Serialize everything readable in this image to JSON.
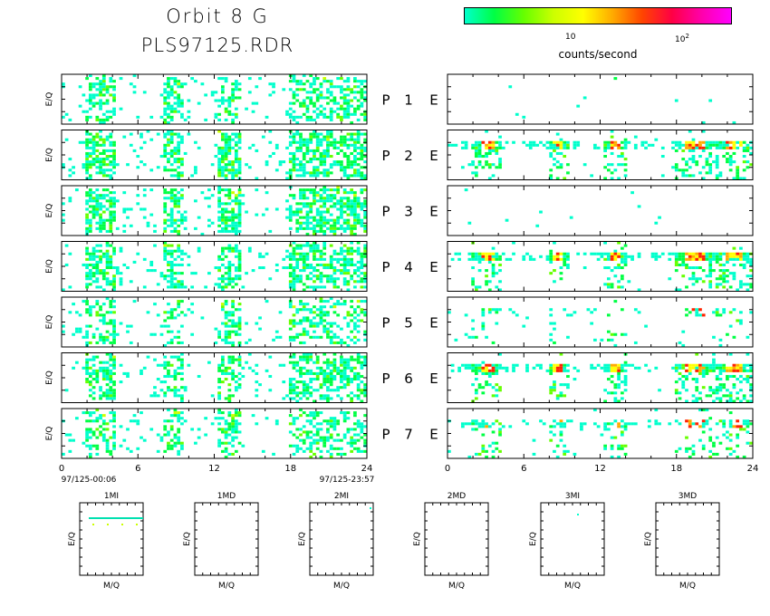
{
  "title": {
    "line1": "Orbit  8  G",
    "line2": "PLS97125.RDR"
  },
  "colorbar": {
    "label": "counts/second",
    "tick_10": "10",
    "tick_100_base": "10",
    "tick_100_exp": "2",
    "stops": [
      "#00ffcc",
      "#00ff44",
      "#66ff00",
      "#ccff00",
      "#ffff00",
      "#ffaa00",
      "#ff4400",
      "#ff0044",
      "#ff00aa",
      "#ff00ff"
    ]
  },
  "panels": {
    "ylabel": "E/Q",
    "p_letter": "P",
    "e_letter": "E",
    "rows": [
      {
        "num": "1"
      },
      {
        "num": "2"
      },
      {
        "num": "3"
      },
      {
        "num": "4"
      },
      {
        "num": "5"
      },
      {
        "num": "6"
      },
      {
        "num": "7"
      }
    ],
    "x_ticks": [
      "0",
      "6",
      "12",
      "18",
      "24"
    ],
    "time_start": "97/125-00:06",
    "time_end": "97/125-23:57"
  },
  "small_panels": {
    "xlabel": "M/Q",
    "ylabel": "E/Q",
    "titles": [
      "1MI",
      "1MD",
      "2MI",
      "2MD",
      "3MI",
      "3MD"
    ]
  },
  "chart_data": {
    "type": "heatmap",
    "x_range": [
      0,
      24
    ],
    "x_unit": "hours",
    "bands_hours": [
      [
        2,
        4.2
      ],
      [
        8,
        9.5
      ],
      [
        12.4,
        14
      ],
      [
        18,
        21
      ],
      [
        21,
        24
      ]
    ],
    "p_activity": [
      0.55,
      0.7,
      0.7,
      0.6,
      0.45,
      0.6,
      0.5
    ],
    "e_activity": [
      0.02,
      0.9,
      0.0,
      0.9,
      0.2,
      0.9,
      0.55
    ]
  }
}
